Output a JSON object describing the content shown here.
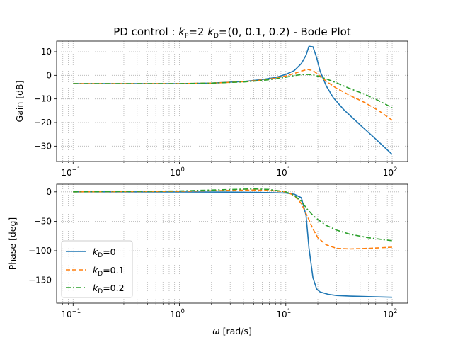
{
  "figure": {
    "title_prefix": "PD control : ",
    "title_kp_italic": "k",
    "title_kp_sub": "P",
    "title_kp_value": "=2  ",
    "title_kd_italic": "k",
    "title_kd_sub": "D",
    "title_kd_value": "=(0, 0.1, 0.2) - Bode Plot",
    "xlabel_symbol": "ω",
    "xlabel_unit": " [rad/s]"
  },
  "chart_data": [
    {
      "type": "line",
      "name": "gain",
      "ylabel": "Gain [dB]",
      "xscale": "log",
      "xlim": [
        0.07,
        140
      ],
      "ylim": [
        -36.5,
        14.5
      ],
      "grid": true,
      "xticks": [
        0.1,
        1,
        10,
        100
      ],
      "yticks": [
        10,
        0,
        -10,
        -20,
        -30
      ],
      "ytick_labels": [
        "10",
        "0",
        "−10",
        "−20",
        "−30"
      ],
      "series": [
        {
          "name": "kD=0",
          "color": "#1f77b4",
          "dash": "solid",
          "x": [
            0.1,
            0.5,
            1,
            2,
            4,
            6,
            8,
            10,
            12,
            14,
            15.5,
            16.5,
            18,
            19.5,
            21,
            24,
            28,
            35,
            50,
            70,
            100
          ],
          "y": [
            -3.5,
            -3.5,
            -3.5,
            -3.3,
            -2.6,
            -1.8,
            -0.9,
            0.4,
            2.0,
            5.0,
            8.5,
            12.3,
            12.1,
            7.5,
            1.8,
            -4.5,
            -9.5,
            -14.5,
            -21,
            -27,
            -33.5
          ]
        },
        {
          "name": "kD=0.1",
          "color": "#ff7f0e",
          "dash": "6,3",
          "x": [
            0.1,
            0.5,
            1,
            2,
            4,
            6,
            8,
            10,
            12,
            14,
            16,
            18,
            20,
            24,
            30,
            40,
            55,
            75,
            100
          ],
          "y": [
            -3.5,
            -3.5,
            -3.5,
            -3.3,
            -2.7,
            -2.0,
            -1.2,
            -0.3,
            0.8,
            1.8,
            2.5,
            2.0,
            0.5,
            -2.5,
            -5.5,
            -8.5,
            -11.5,
            -15,
            -19
          ]
        },
        {
          "name": "kD=0.2",
          "color": "#2ca02c",
          "dash": "7,3,2,3",
          "x": [
            0.1,
            0.5,
            1,
            2,
            4,
            6,
            8,
            10,
            12,
            14,
            16,
            18,
            20,
            24,
            30,
            40,
            55,
            75,
            100
          ],
          "y": [
            -3.5,
            -3.5,
            -3.5,
            -3.3,
            -2.8,
            -2.2,
            -1.5,
            -0.8,
            -0.1,
            0.3,
            0.4,
            0.2,
            -0.3,
            -1.5,
            -3.2,
            -5.6,
            -8.0,
            -10.8,
            -13.7
          ]
        }
      ]
    },
    {
      "type": "line",
      "name": "phase",
      "ylabel": "Phase [deg]",
      "xscale": "log",
      "xlim": [
        0.07,
        140
      ],
      "ylim": [
        -189,
        13
      ],
      "grid": true,
      "xticks": [
        0.1,
        1,
        10,
        100
      ],
      "yticks": [
        0,
        -50,
        -100,
        -150
      ],
      "ytick_labels": [
        "0",
        "−50",
        "−100",
        "−150"
      ],
      "legend": "lower-left",
      "series": [
        {
          "name": "kD=0",
          "color": "#1f77b4",
          "dash": "solid",
          "x": [
            0.1,
            1,
            3,
            6,
            10,
            12,
            14,
            15.5,
            16.5,
            18,
            19.5,
            21,
            25,
            30,
            40,
            60,
            100
          ],
          "y": [
            0,
            -0.2,
            -0.5,
            -1,
            -2,
            -4,
            -10,
            -40,
            -95,
            -146,
            -165,
            -170,
            -174,
            -176,
            -177,
            -178,
            -179
          ]
        },
        {
          "name": "kD=0.1",
          "color": "#ff7f0e",
          "dash": "6,3",
          "x": [
            0.1,
            1,
            3,
            5,
            7,
            10,
            12,
            14,
            16,
            18,
            20,
            24,
            30,
            40,
            60,
            100
          ],
          "y": [
            0,
            0.8,
            2.5,
            3,
            2.5,
            0,
            -6,
            -20,
            -42,
            -63,
            -78,
            -90,
            -96,
            -97,
            -96,
            -94
          ]
        },
        {
          "name": "kD=0.2",
          "color": "#2ca02c",
          "dash": "7,3,2,3",
          "x": [
            0.1,
            1,
            3,
            5,
            7,
            10,
            12,
            14,
            16,
            18,
            20,
            24,
            30,
            40,
            60,
            100
          ],
          "y": [
            0,
            1.5,
            4,
            5,
            4,
            0,
            -6,
            -16,
            -30,
            -40,
            -47,
            -57,
            -65,
            -72,
            -78,
            -83
          ]
        }
      ]
    }
  ],
  "legend": {
    "entries": [
      {
        "symbol": "k",
        "sub": "D",
        "value": "=0"
      },
      {
        "symbol": "k",
        "sub": "D",
        "value": "=0.1"
      },
      {
        "symbol": "k",
        "sub": "D",
        "value": "=0.2"
      }
    ]
  }
}
